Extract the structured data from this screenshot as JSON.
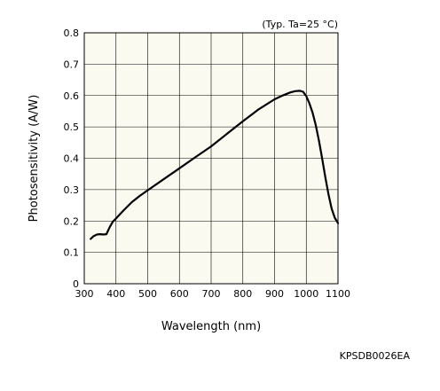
{
  "chart_data": {
    "type": "line",
    "title": "",
    "condition_note": "(Typ. Ta=25 °C)",
    "xlabel": "Wavelength (nm)",
    "ylabel": "Photosensitivity (A/W)",
    "xlim": [
      300,
      1100
    ],
    "ylim": [
      0,
      0.8
    ],
    "xticks": [
      300,
      400,
      500,
      600,
      700,
      800,
      900,
      1000,
      1100
    ],
    "xtick_labels": [
      "300",
      "400",
      "500",
      "600",
      "700",
      "800",
      "900",
      "1000",
      "1100"
    ],
    "yticks": [
      0,
      0.1,
      0.2,
      0.3,
      0.4,
      0.5,
      0.6,
      0.7,
      0.8
    ],
    "ytick_labels": [
      "0",
      "0.1",
      "0.2",
      "0.3",
      "0.4",
      "0.5",
      "0.6",
      "0.7",
      "0.8"
    ],
    "grid": true,
    "series": [
      {
        "x": [
          320,
          330,
          340,
          350,
          360,
          370,
          380,
          390,
          400,
          425,
          450,
          475,
          500,
          550,
          600,
          650,
          700,
          750,
          800,
          850,
          900,
          925,
          950,
          965,
          980,
          990,
          1000,
          1010,
          1020,
          1030,
          1040,
          1050,
          1060,
          1070,
          1080,
          1090,
          1100
        ],
        "y": [
          0.143,
          0.152,
          0.157,
          0.158,
          0.157,
          0.158,
          0.18,
          0.198,
          0.208,
          0.235,
          0.26,
          0.28,
          0.298,
          0.333,
          0.368,
          0.403,
          0.438,
          0.478,
          0.518,
          0.556,
          0.588,
          0.6,
          0.61,
          0.614,
          0.615,
          0.612,
          0.598,
          0.575,
          0.545,
          0.505,
          0.455,
          0.4,
          0.34,
          0.285,
          0.24,
          0.21,
          0.193
        ]
      }
    ]
  },
  "figure_code": "KPSDB0026EA"
}
